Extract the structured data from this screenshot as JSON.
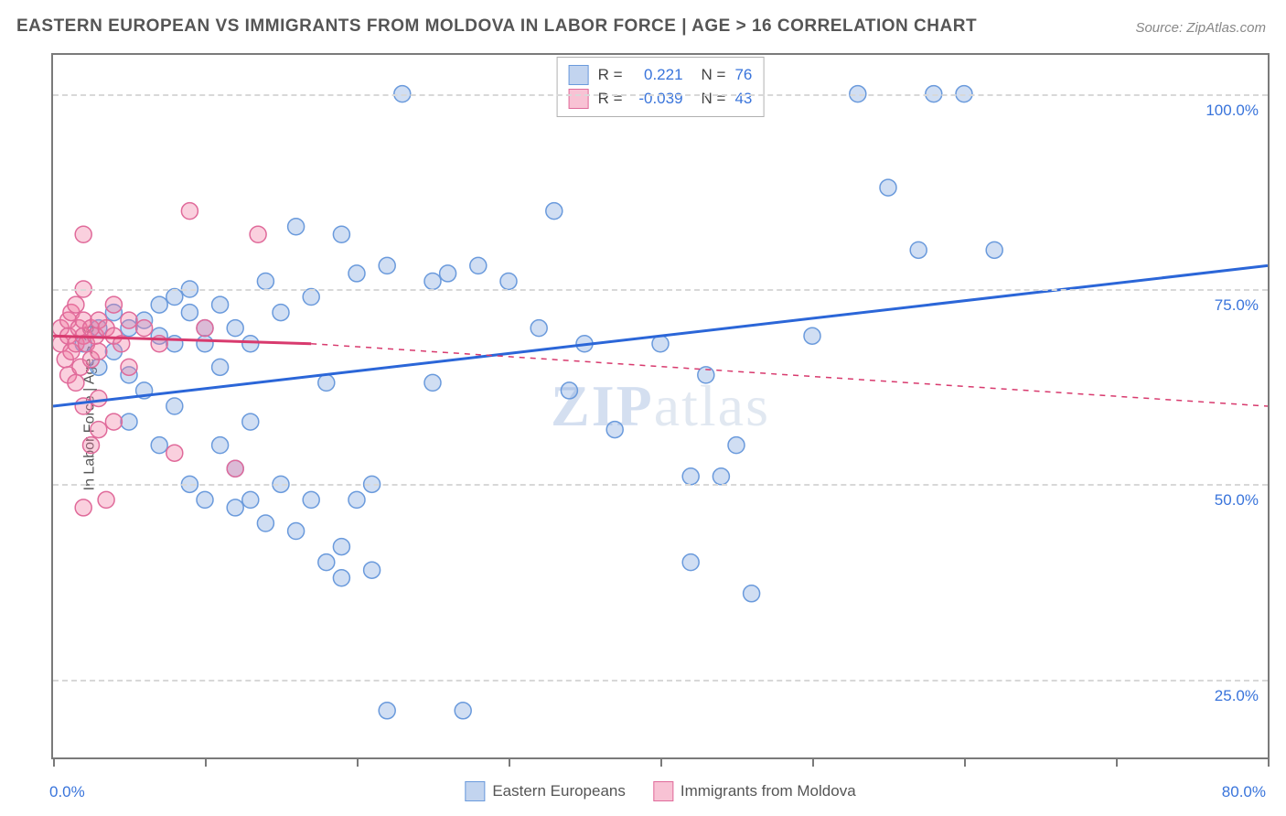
{
  "title": "EASTERN EUROPEAN VS IMMIGRANTS FROM MOLDOVA IN LABOR FORCE | AGE > 16 CORRELATION CHART",
  "source": "Source: ZipAtlas.com",
  "y_axis_label": "In Labor Force | Age > 16",
  "watermark": {
    "bold": "ZIP",
    "rest": "atlas"
  },
  "chart": {
    "type": "scatter",
    "xlim": [
      0,
      80
    ],
    "ylim": [
      15,
      105
    ],
    "x_ticks": [
      0,
      10,
      20,
      30,
      40,
      50,
      60,
      70,
      80
    ],
    "x_tick_labels_shown": {
      "0": "0.0%",
      "80": "80.0%"
    },
    "y_grid": [
      25,
      50,
      75,
      100
    ],
    "y_tick_labels": [
      "25.0%",
      "50.0%",
      "75.0%",
      "100.0%"
    ],
    "background_color": "#ffffff",
    "grid_color": "#d8d8d8",
    "axis_color": "#7a7a7a",
    "tick_label_color": "#3974db",
    "series": [
      {
        "name": "Eastern Europeans",
        "color_fill": "rgba(120,160,220,0.35)",
        "color_stroke": "#6a9adc",
        "marker_radius": 9,
        "trend": {
          "x1": 0,
          "y1": 60,
          "x2": 80,
          "y2": 78,
          "color": "#2b66d8",
          "width": 3,
          "dash": "none"
        },
        "R": "0.221",
        "N": "76",
        "points": [
          [
            2,
            68
          ],
          [
            3,
            70
          ],
          [
            3,
            65
          ],
          [
            4,
            72
          ],
          [
            4,
            67
          ],
          [
            5,
            64
          ],
          [
            5,
            70
          ],
          [
            5,
            58
          ],
          [
            6,
            71
          ],
          [
            6,
            62
          ],
          [
            7,
            69
          ],
          [
            7,
            73
          ],
          [
            7,
            55
          ],
          [
            8,
            74
          ],
          [
            8,
            68
          ],
          [
            8,
            60
          ],
          [
            9,
            72
          ],
          [
            9,
            50
          ],
          [
            9,
            75
          ],
          [
            10,
            70
          ],
          [
            10,
            48
          ],
          [
            10,
            68
          ],
          [
            11,
            73
          ],
          [
            11,
            65
          ],
          [
            12,
            70
          ],
          [
            12,
            47
          ],
          [
            12,
            52
          ],
          [
            13,
            68
          ],
          [
            13,
            48
          ],
          [
            14,
            76
          ],
          [
            14,
            45
          ],
          [
            15,
            72
          ],
          [
            15,
            50
          ],
          [
            16,
            83
          ],
          [
            16,
            44
          ],
          [
            17,
            74
          ],
          [
            17,
            48
          ],
          [
            18,
            63
          ],
          [
            18,
            40
          ],
          [
            19,
            82
          ],
          [
            19,
            42
          ],
          [
            19,
            38
          ],
          [
            20,
            77
          ],
          [
            20,
            48
          ],
          [
            21,
            50
          ],
          [
            21,
            39
          ],
          [
            22,
            78
          ],
          [
            22,
            21
          ],
          [
            23,
            100
          ],
          [
            25,
            76
          ],
          [
            25,
            63
          ],
          [
            26,
            77
          ],
          [
            27,
            21
          ],
          [
            28,
            78
          ],
          [
            30,
            76
          ],
          [
            32,
            70
          ],
          [
            33,
            85
          ],
          [
            34,
            62
          ],
          [
            35,
            68
          ],
          [
            37,
            57
          ],
          [
            40,
            68
          ],
          [
            42,
            51
          ],
          [
            42,
            40
          ],
          [
            43,
            64
          ],
          [
            44,
            51
          ],
          [
            45,
            55
          ],
          [
            46,
            36
          ],
          [
            50,
            69
          ],
          [
            53,
            100
          ],
          [
            55,
            88
          ],
          [
            57,
            80
          ],
          [
            58,
            100
          ],
          [
            60,
            100
          ],
          [
            62,
            80
          ],
          [
            11,
            55
          ],
          [
            13,
            58
          ]
        ]
      },
      {
        "name": "Immigrants from Moldova",
        "color_fill": "rgba(240,120,160,0.35)",
        "color_stroke": "#e06a9a",
        "marker_radius": 9,
        "trend": {
          "x1": 0,
          "y1": 69,
          "x2": 17,
          "y2": 68,
          "color": "#d83a6e",
          "width": 3,
          "dash": "none",
          "ext_x2": 80,
          "ext_y2": 60,
          "ext_dash": "6,6"
        },
        "R": "-0.039",
        "N": "43",
        "points": [
          [
            0.5,
            68
          ],
          [
            0.5,
            70
          ],
          [
            0.8,
            66
          ],
          [
            1,
            69
          ],
          [
            1,
            71
          ],
          [
            1,
            64
          ],
          [
            1.2,
            67
          ],
          [
            1.2,
            72
          ],
          [
            1.5,
            68
          ],
          [
            1.5,
            63
          ],
          [
            1.5,
            73
          ],
          [
            1.7,
            70
          ],
          [
            1.8,
            65
          ],
          [
            2,
            69
          ],
          [
            2,
            71
          ],
          [
            2,
            60
          ],
          [
            2,
            75
          ],
          [
            2,
            82
          ],
          [
            2,
            47
          ],
          [
            2.2,
            68
          ],
          [
            2.5,
            70
          ],
          [
            2.5,
            66
          ],
          [
            2.5,
            55
          ],
          [
            2.8,
            69
          ],
          [
            3,
            71
          ],
          [
            3,
            67
          ],
          [
            3,
            61
          ],
          [
            3,
            57
          ],
          [
            3.5,
            70
          ],
          [
            3.5,
            48
          ],
          [
            4,
            73
          ],
          [
            4,
            69
          ],
          [
            4,
            58
          ],
          [
            4.5,
            68
          ],
          [
            5,
            71
          ],
          [
            5,
            65
          ],
          [
            6,
            70
          ],
          [
            7,
            68
          ],
          [
            8,
            54
          ],
          [
            9,
            85
          ],
          [
            10,
            70
          ],
          [
            12,
            52
          ],
          [
            13.5,
            82
          ]
        ]
      }
    ]
  },
  "legend_top": {
    "rows": [
      {
        "swatch_fill": "rgba(120,160,220,0.45)",
        "swatch_border": "#6a9adc",
        "R_label": "R =",
        "R_val": "0.221",
        "N_label": "N =",
        "N_val": "76"
      },
      {
        "swatch_fill": "rgba(240,120,160,0.45)",
        "swatch_border": "#e06a9a",
        "R_label": "R =",
        "R_val": "-0.039",
        "N_label": "N =",
        "N_val": "43"
      }
    ]
  },
  "legend_bottom": {
    "items": [
      {
        "swatch_fill": "rgba(120,160,220,0.45)",
        "swatch_border": "#6a9adc",
        "label": "Eastern Europeans"
      },
      {
        "swatch_fill": "rgba(240,120,160,0.45)",
        "swatch_border": "#e06a9a",
        "label": "Immigrants from Moldova"
      }
    ]
  }
}
